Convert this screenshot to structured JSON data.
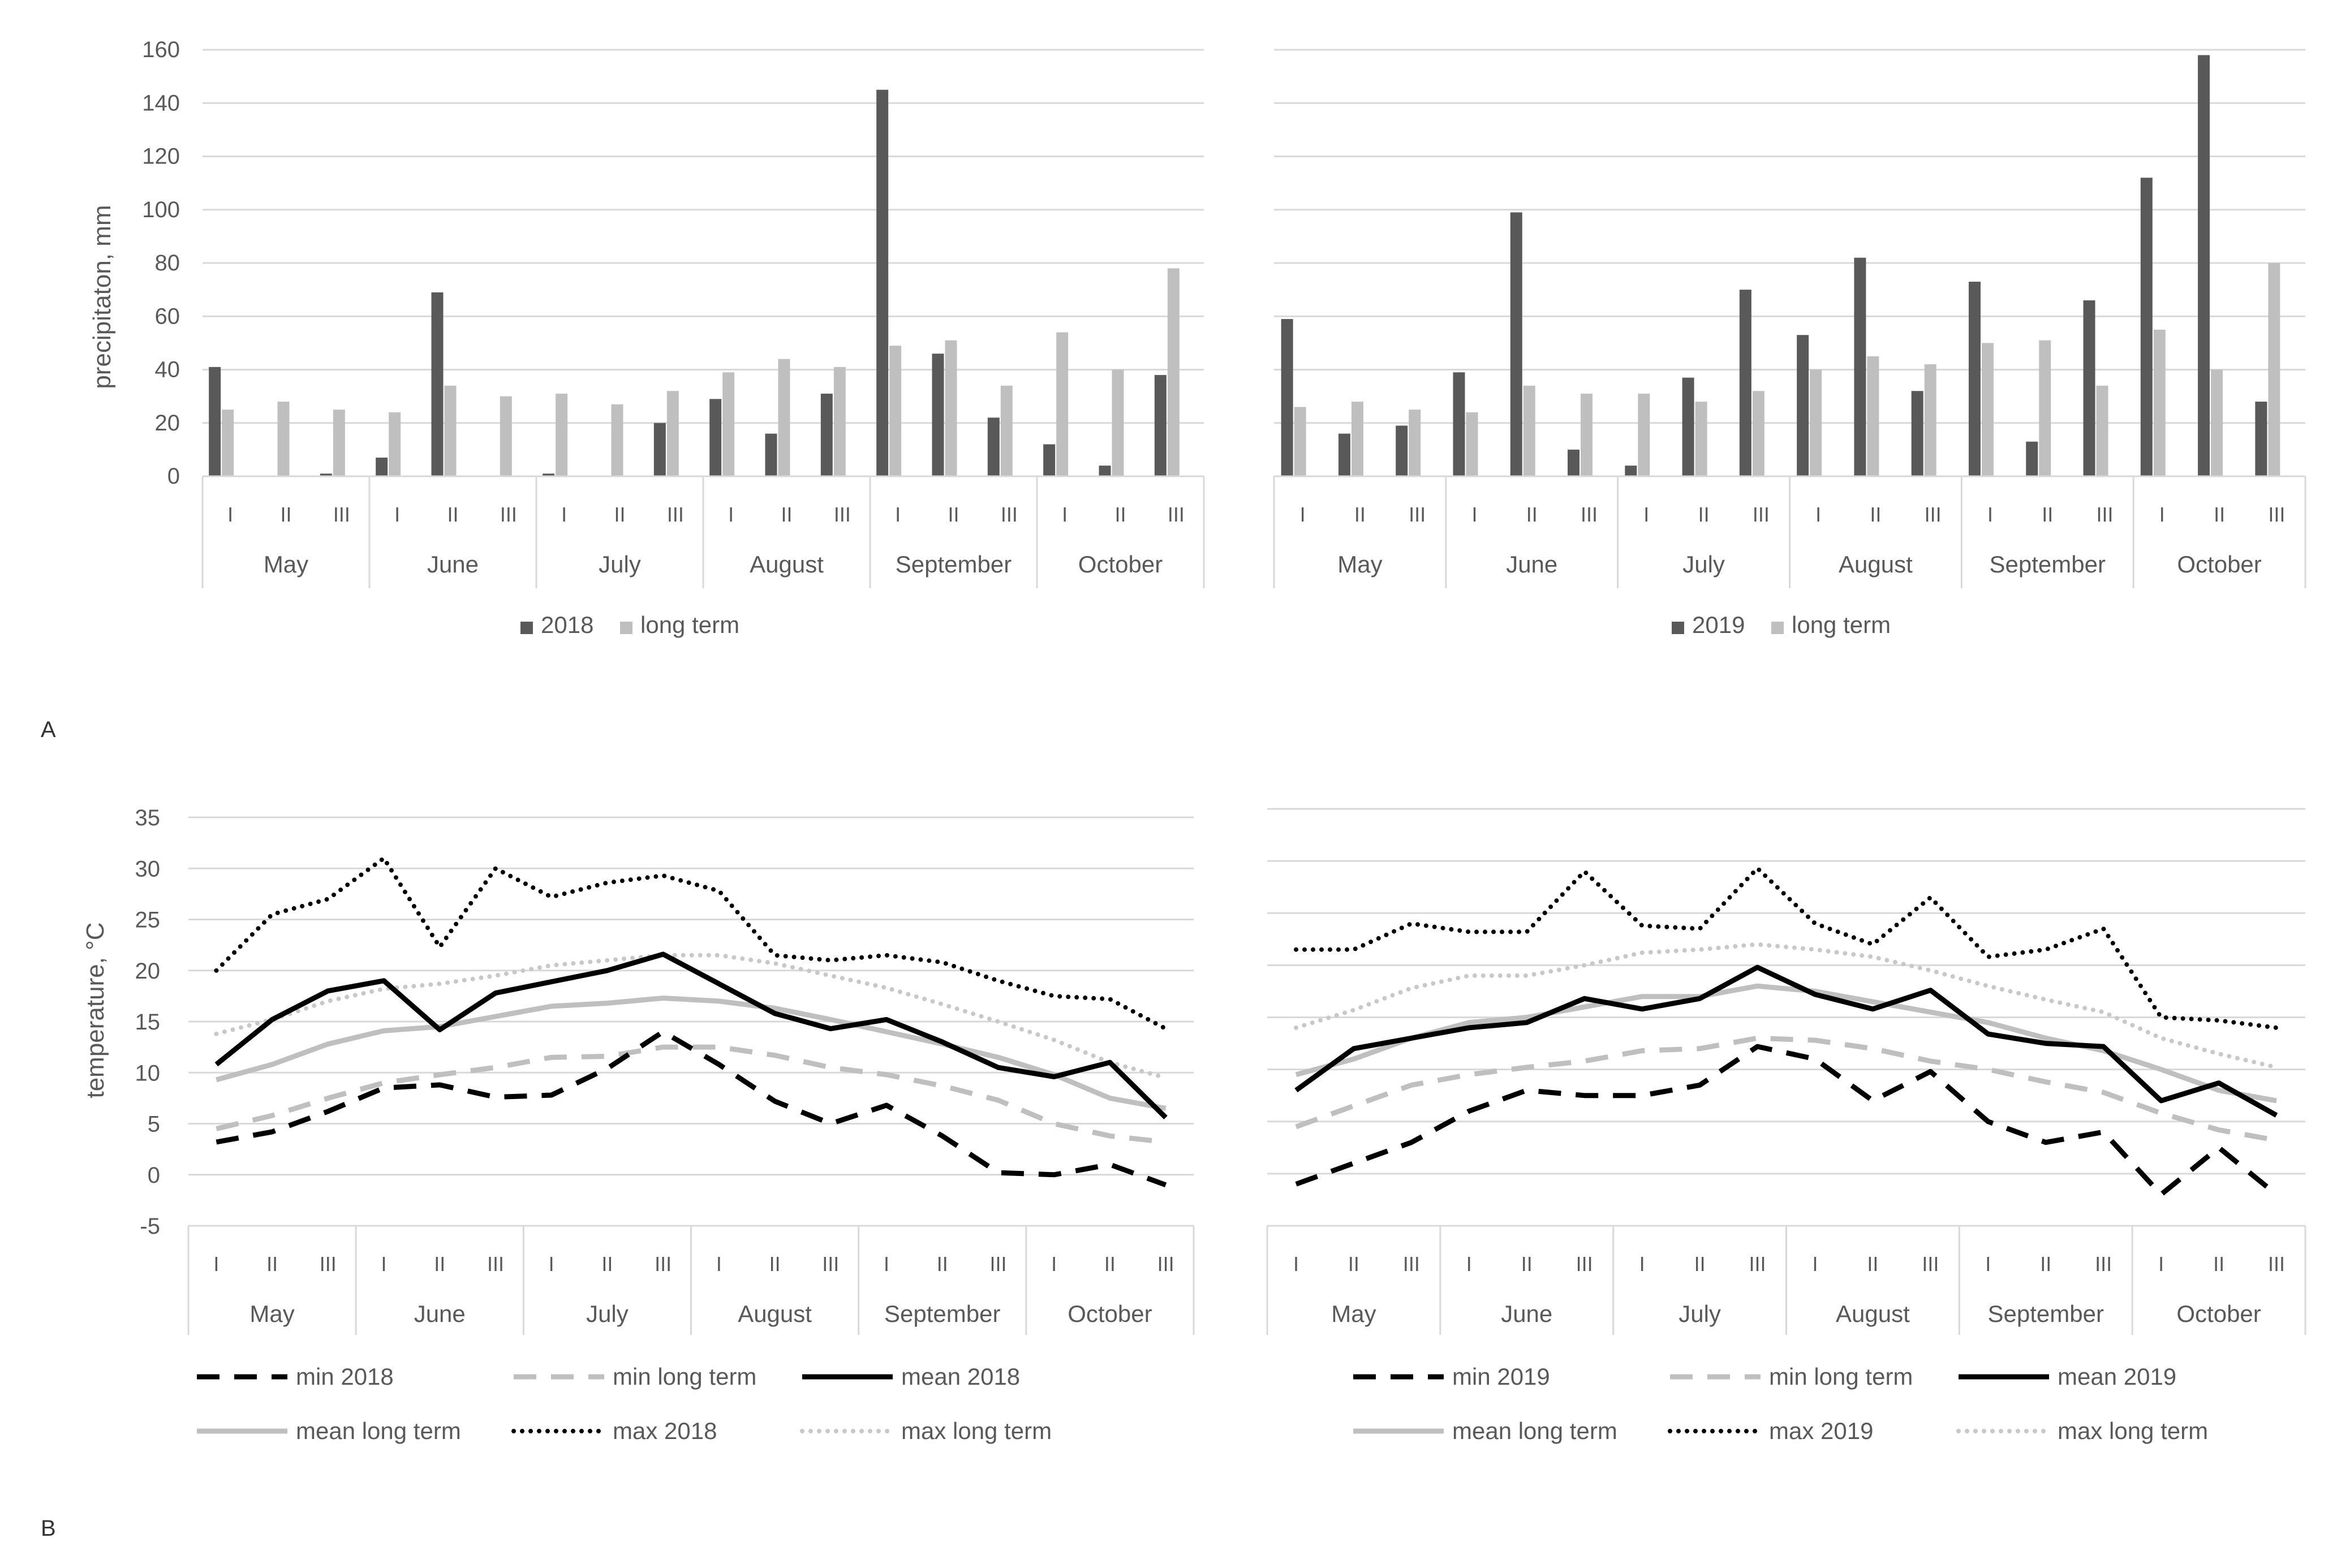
{
  "panels": {
    "A": "A",
    "B": "B"
  },
  "colors": {
    "dark_bar": "#595959",
    "light_bar": "#bfbfbf",
    "grid": "#d9d9d9",
    "axis_text": "#595959",
    "black_line": "#000000",
    "gray_line": "#bfbfbf",
    "dotted_light": "#c8c8c8"
  },
  "chart_data": [
    {
      "id": "precip2018",
      "type": "bar",
      "title": "",
      "ylabel": "precipitaton, mm",
      "xlabel": "",
      "ylim": [
        0,
        160
      ],
      "ticks": [
        "0",
        "20",
        "40",
        "60",
        "80",
        "100",
        "120",
        "140",
        "160"
      ],
      "grid": true,
      "legend_position": "bottom",
      "decades": [
        "I",
        "II",
        "III"
      ],
      "months": [
        "May",
        "June",
        "July",
        "August",
        "September",
        "October"
      ],
      "series": [
        {
          "name": "2018",
          "values": [
            41,
            0,
            1,
            7,
            69,
            0,
            1,
            0,
            20,
            29,
            16,
            31,
            145,
            46,
            22,
            12,
            4,
            38
          ]
        },
        {
          "name": "long term",
          "values": [
            25,
            28,
            25,
            24,
            34,
            30,
            31,
            27,
            32,
            39,
            44,
            41,
            49,
            51,
            34,
            54,
            40,
            78
          ]
        }
      ]
    },
    {
      "id": "precip2019",
      "type": "bar",
      "title": "",
      "ylabel": "",
      "xlabel": "",
      "ylim": [
        0,
        160
      ],
      "grid": true,
      "legend_position": "bottom",
      "decades": [
        "I",
        "II",
        "III"
      ],
      "months": [
        "May",
        "June",
        "July",
        "August",
        "September",
        "October"
      ],
      "series": [
        {
          "name": "2019",
          "values": [
            59,
            16,
            19,
            39,
            99,
            10,
            4,
            37,
            70,
            53,
            82,
            32,
            73,
            13,
            66,
            112,
            158,
            28
          ]
        },
        {
          "name": "long term",
          "values": [
            26,
            28,
            25,
            24,
            34,
            31,
            31,
            28,
            32,
            40,
            45,
            42,
            50,
            51,
            34,
            55,
            40,
            80
          ]
        }
      ]
    },
    {
      "id": "temp2018",
      "type": "line",
      "title": "",
      "ylabel": "temperature, °C",
      "xlabel": "",
      "ylim": [
        -5,
        35
      ],
      "ticks": [
        "-5",
        "0",
        "5",
        "10",
        "15",
        "20",
        "25",
        "30",
        "35"
      ],
      "grid": true,
      "legend_position": "bottom",
      "decades": [
        "I",
        "II",
        "III"
      ],
      "months": [
        "May",
        "June",
        "July",
        "August",
        "September",
        "October"
      ],
      "series": [
        {
          "name": "min 2018",
          "style": "dashed-black",
          "values": [
            3.2,
            4.2,
            6.2,
            8.5,
            8.8,
            7.6,
            7.8,
            10.4,
            14.0,
            10.8,
            7.2,
            5.0,
            6.8,
            3.8,
            0.2,
            0.0,
            1.0,
            -1.0
          ]
        },
        {
          "name": "min long term",
          "style": "dashed-gray",
          "values": [
            4.5,
            5.8,
            7.5,
            9.0,
            9.8,
            10.5,
            11.5,
            11.6,
            12.5,
            12.5,
            11.7,
            10.5,
            9.8,
            8.7,
            7.3,
            5.0,
            3.8,
            3.2
          ]
        },
        {
          "name": "mean 2018",
          "style": "solid-black",
          "values": [
            10.8,
            15.2,
            18.0,
            19.0,
            14.2,
            17.8,
            18.9,
            20.0,
            21.6,
            18.7,
            15.8,
            14.3,
            15.2,
            13.0,
            10.5,
            9.6,
            11.0,
            5.6
          ]
        },
        {
          "name": "mean long term",
          "style": "solid-gray",
          "values": [
            9.3,
            10.8,
            12.8,
            14.1,
            14.5,
            15.5,
            16.5,
            16.8,
            17.3,
            17.0,
            16.3,
            15.2,
            14.0,
            12.8,
            11.5,
            9.8,
            7.5,
            6.5
          ]
        },
        {
          "name": "max 2018",
          "style": "dotted-black",
          "values": [
            20.0,
            25.5,
            27.0,
            31.0,
            22.3,
            30.0,
            27.2,
            28.6,
            29.3,
            27.8,
            21.5,
            21.0,
            21.5,
            20.8,
            19.0,
            17.5,
            17.2,
            14.3
          ]
        },
        {
          "name": "max long term",
          "style": "dotted-gray",
          "values": [
            13.8,
            15.2,
            17.0,
            18.2,
            18.7,
            19.5,
            20.5,
            21.0,
            21.5,
            21.5,
            20.7,
            19.5,
            18.3,
            16.7,
            15.0,
            13.2,
            11.0,
            9.5
          ]
        }
      ]
    },
    {
      "id": "temp2019",
      "type": "line",
      "title": "",
      "ylabel": "",
      "xlabel": "",
      "ylim": [
        -5,
        35
      ],
      "grid": true,
      "legend_position": "bottom",
      "decades": [
        "I",
        "II",
        "III"
      ],
      "months": [
        "May",
        "June",
        "July",
        "August",
        "September",
        "October"
      ],
      "series": [
        {
          "name": "min 2019",
          "style": "dashed-black",
          "values": [
            -1.0,
            1.0,
            3.0,
            6.0,
            8.0,
            7.5,
            7.5,
            8.5,
            12.2,
            11.0,
            7.0,
            9.8,
            5.0,
            3.0,
            4.0,
            -2.0,
            2.5,
            -2.0
          ]
        },
        {
          "name": "min long term",
          "style": "dashed-gray",
          "values": [
            4.5,
            6.5,
            8.5,
            9.5,
            10.2,
            10.8,
            11.8,
            12.0,
            13.0,
            12.8,
            12.0,
            10.8,
            10.0,
            8.8,
            7.8,
            5.8,
            4.2,
            3.2
          ]
        },
        {
          "name": "mean 2019",
          "style": "solid-black",
          "values": [
            8.0,
            12.0,
            13.0,
            14.0,
            14.5,
            16.8,
            15.8,
            16.8,
            19.8,
            17.2,
            15.8,
            17.6,
            13.4,
            12.5,
            12.2,
            7.0,
            8.7,
            5.6
          ]
        },
        {
          "name": "mean long term",
          "style": "solid-gray",
          "values": [
            9.5,
            11.0,
            13.0,
            14.5,
            15.0,
            16.0,
            17.0,
            17.0,
            18.0,
            17.5,
            16.5,
            15.5,
            14.5,
            13.0,
            11.8,
            10.0,
            8.0,
            7.0
          ]
        },
        {
          "name": "max 2019",
          "style": "dotted-black",
          "values": [
            21.5,
            21.5,
            24.0,
            23.2,
            23.2,
            29.0,
            23.8,
            23.5,
            29.3,
            24.0,
            22.0,
            26.5,
            20.8,
            21.5,
            23.5,
            15.0,
            14.7,
            14.0
          ]
        },
        {
          "name": "max long term",
          "style": "dotted-gray",
          "values": [
            14.0,
            15.7,
            17.8,
            19.0,
            19.0,
            20.0,
            21.2,
            21.5,
            22.0,
            21.5,
            20.8,
            19.5,
            18.0,
            16.7,
            15.5,
            13.0,
            11.5,
            10.2
          ]
        }
      ]
    }
  ]
}
